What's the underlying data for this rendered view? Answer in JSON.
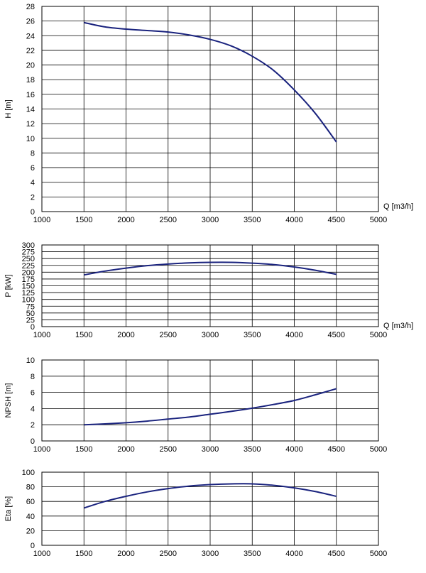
{
  "chart_data": [
    {
      "type": "line",
      "ylabel": "H [m]",
      "xlabel": "Q [m3/h]",
      "xlim": [
        1000,
        5000
      ],
      "ylim": [
        0,
        28
      ],
      "xticks": [
        "1000",
        "1500",
        "2000",
        "2500",
        "3000",
        "3500",
        "4000",
        "4500",
        "5000"
      ],
      "yticks": [
        "0",
        "2",
        "4",
        "6",
        "8",
        "10",
        "12",
        "14",
        "16",
        "18",
        "20",
        "22",
        "24",
        "26",
        "28"
      ],
      "grid": true,
      "color": "#1a237e",
      "series": [
        {
          "x": [
            1500,
            1750,
            2000,
            2250,
            2500,
            2750,
            3000,
            3250,
            3500,
            3750,
            4000,
            4250,
            4500
          ],
          "y": [
            25.8,
            25.2,
            24.9,
            24.7,
            24.5,
            24.1,
            23.5,
            22.6,
            21.2,
            19.3,
            16.6,
            13.4,
            9.5
          ]
        }
      ]
    },
    {
      "type": "line",
      "ylabel": "P [kW]",
      "xlabel": "Q [m3/h]",
      "xlim": [
        1000,
        5000
      ],
      "ylim": [
        0,
        300
      ],
      "xticks": [
        "1000",
        "1500",
        "2000",
        "2500",
        "3000",
        "3500",
        "4000",
        "4500",
        "5000"
      ],
      "yticks": [
        "0",
        "25",
        "50",
        "75",
        "100",
        "125",
        "150",
        "175",
        "200",
        "225",
        "250",
        "275",
        "300"
      ],
      "grid": true,
      "color": "#1a237e",
      "series": [
        {
          "x": [
            1500,
            1750,
            2000,
            2250,
            2500,
            2750,
            3000,
            3250,
            3500,
            3750,
            4000,
            4250,
            4500
          ],
          "y": [
            190,
            204,
            215,
            224,
            230,
            234,
            236,
            236,
            233,
            228,
            219,
            207,
            192
          ]
        }
      ]
    },
    {
      "type": "line",
      "ylabel": "NPSH [m]",
      "xlabel": "",
      "xlim": [
        1000,
        5000
      ],
      "ylim": [
        0,
        10
      ],
      "xticks": [
        "1000",
        "1500",
        "2000",
        "2500",
        "3000",
        "3500",
        "4000",
        "4500",
        "5000"
      ],
      "yticks": [
        "0",
        "2",
        "4",
        "6",
        "8",
        "10"
      ],
      "grid": true,
      "color": "#1a237e",
      "series": [
        {
          "x": [
            1500,
            1750,
            2000,
            2250,
            2500,
            2750,
            3000,
            3250,
            3500,
            3750,
            4000,
            4250,
            4500
          ],
          "y": [
            2.0,
            2.1,
            2.25,
            2.45,
            2.7,
            2.95,
            3.3,
            3.65,
            4.05,
            4.5,
            5.0,
            5.7,
            6.45
          ]
        }
      ]
    },
    {
      "type": "line",
      "ylabel": "Eta [%]",
      "xlabel": "",
      "xlim": [
        1000,
        5000
      ],
      "ylim": [
        0,
        100
      ],
      "xticks": [
        "1000",
        "1500",
        "2000",
        "2500",
        "3000",
        "3500",
        "4000",
        "4500",
        "5000"
      ],
      "yticks": [
        "0",
        "20",
        "40",
        "60",
        "80",
        "100"
      ],
      "grid": true,
      "color": "#1a237e",
      "series": [
        {
          "x": [
            1500,
            1750,
            2000,
            2250,
            2500,
            2750,
            3000,
            3250,
            3500,
            3750,
            4000,
            4250,
            4500
          ],
          "y": [
            51,
            60,
            67,
            73,
            77.5,
            81,
            83,
            84,
            84,
            82,
            78.5,
            73.5,
            67
          ]
        }
      ]
    }
  ]
}
